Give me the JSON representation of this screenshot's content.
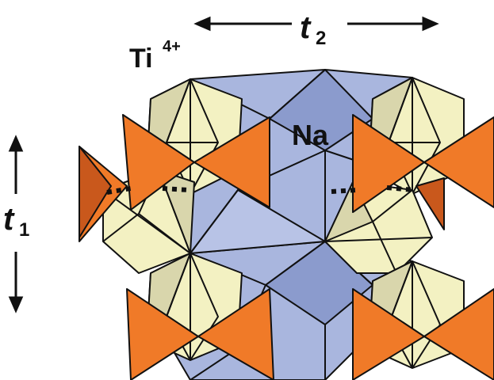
{
  "labels": {
    "ti": "Ti",
    "ti_charge": "4+",
    "na": "Na",
    "t1_main": "t",
    "t1_sub": "1",
    "t2_main": "t",
    "t2_sub": "2"
  },
  "colors": {
    "background": "#ffffff",
    "ti_octahedron": "#f3f1c2",
    "ti_octahedron_shadow": "#c9c6a0",
    "na_polyhedron": "#a9b6de",
    "na_polyhedron_dark": "#8b9bcd",
    "tetrahedron": "#f07a28",
    "tetrahedron_dark": "#c9581c",
    "edge": "#111111"
  }
}
